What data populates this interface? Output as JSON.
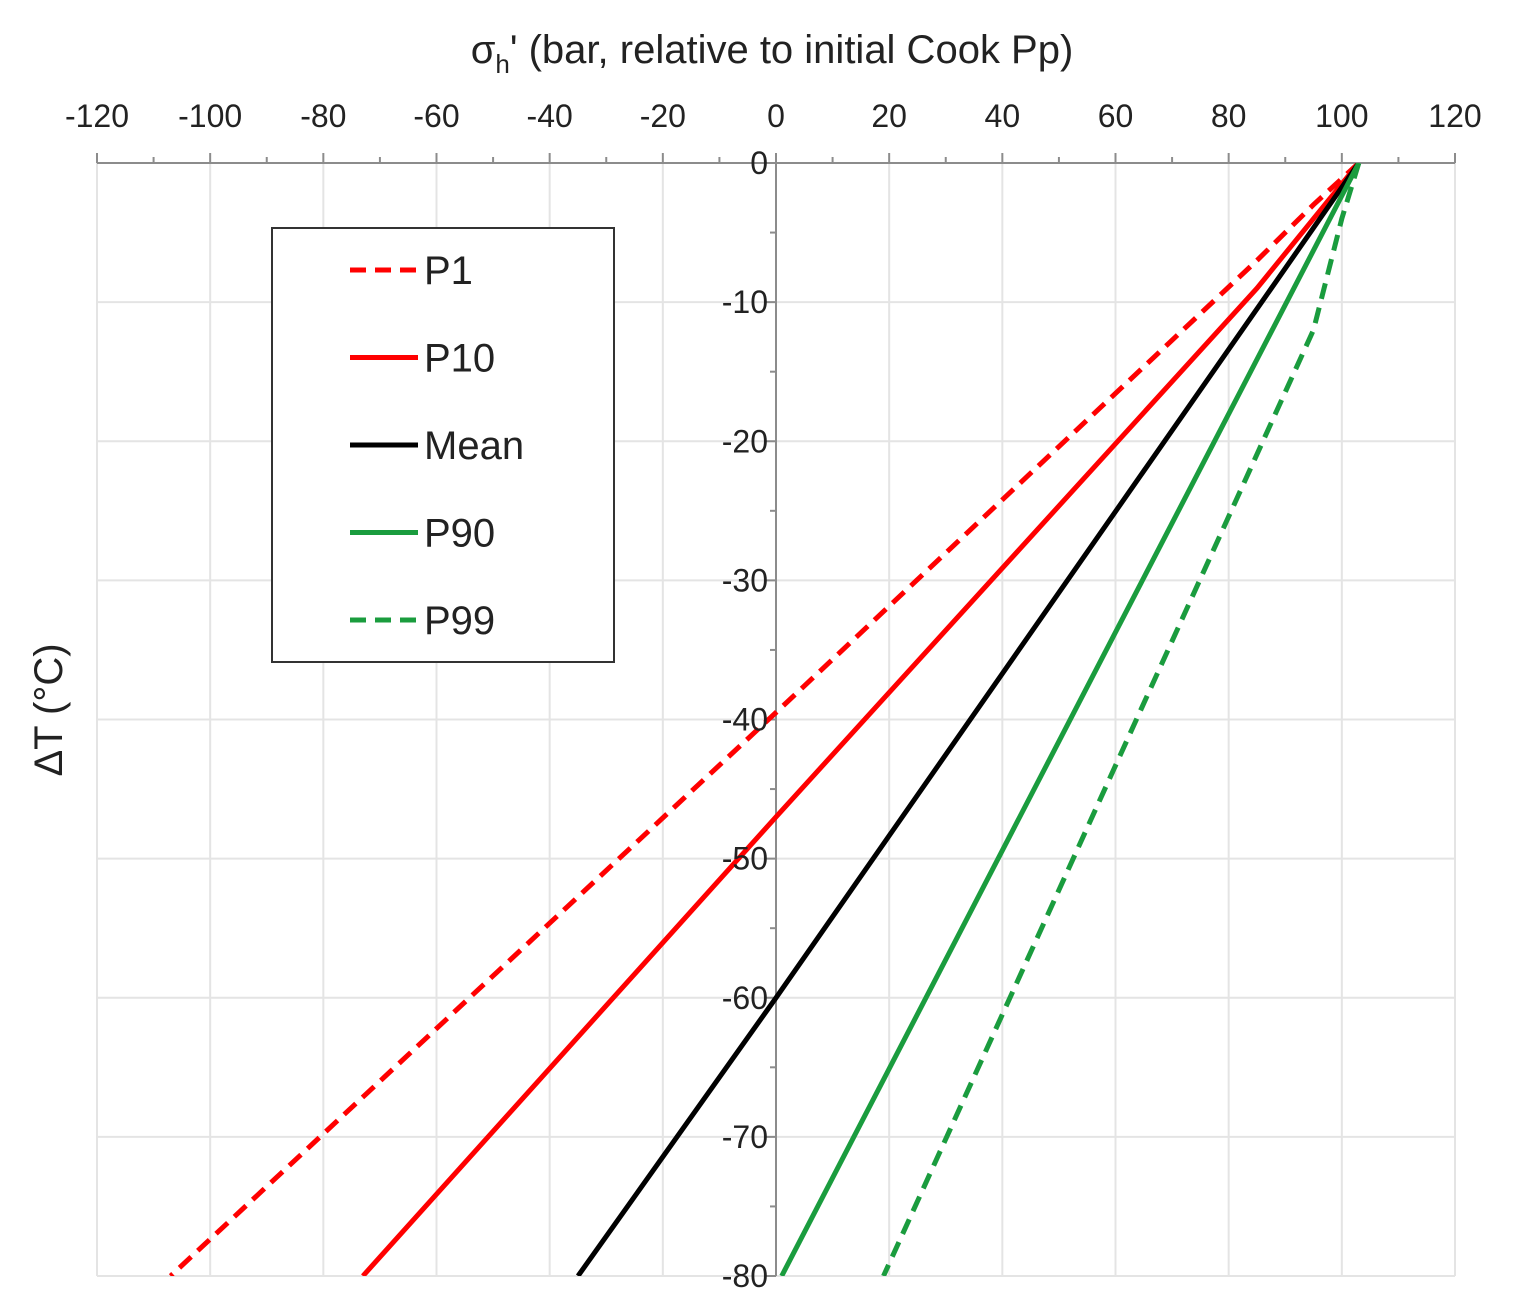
{
  "chart_data": {
    "type": "line",
    "title": "",
    "xlabel": {
      "base": "σ",
      "sub": "h",
      "rest": "' (bar, relative to initial Cook Pp)"
    },
    "ylabel": "ΔT (°C)",
    "xlim": [
      -120,
      120
    ],
    "ylim": [
      -80,
      0
    ],
    "x_ticks": [
      -120,
      -100,
      -80,
      -60,
      -40,
      -20,
      0,
      20,
      40,
      60,
      80,
      100,
      120
    ],
    "x_tick_labels": [
      "-120",
      "-100",
      "-80",
      "-60",
      "-40",
      "-20",
      "0",
      "20",
      "40",
      "60",
      "80",
      "100",
      "120"
    ],
    "y_ticks": [
      0,
      -10,
      -20,
      -30,
      -40,
      -50,
      -60,
      -70,
      -80
    ],
    "y_tick_labels": [
      "0",
      "-10",
      "-20",
      "-30",
      "-40",
      "-50",
      "-60",
      "-70",
      "-80"
    ],
    "x_axis_position": "top",
    "y_axis_position": "x=0",
    "grid": true,
    "legend_position": "top-left",
    "series": [
      {
        "name": "P1",
        "color": "#ff0000",
        "style": "dashed",
        "points": [
          [
            103,
            0
          ],
          [
            95,
            -3
          ],
          [
            85,
            -7
          ],
          [
            0,
            -39.5
          ],
          [
            -107,
            -80
          ]
        ]
      },
      {
        "name": "P10",
        "color": "#ff0000",
        "style": "solid",
        "points": [
          [
            103,
            0
          ],
          [
            95,
            -4
          ],
          [
            85,
            -9
          ],
          [
            0,
            -47
          ],
          [
            -73,
            -80
          ]
        ]
      },
      {
        "name": "Mean",
        "color": "#000000",
        "style": "solid",
        "points": [
          [
            103,
            0
          ],
          [
            0,
            -60
          ],
          [
            -35,
            -80
          ]
        ]
      },
      {
        "name": "P90",
        "color": "#1a9c3e",
        "style": "solid",
        "points": [
          [
            103,
            0
          ],
          [
            1,
            -80
          ]
        ]
      },
      {
        "name": "P99",
        "color": "#1a9c3e",
        "style": "dashed",
        "points": [
          [
            103,
            0
          ],
          [
            100,
            -4
          ],
          [
            95,
            -12
          ],
          [
            19,
            -80
          ]
        ]
      }
    ]
  }
}
